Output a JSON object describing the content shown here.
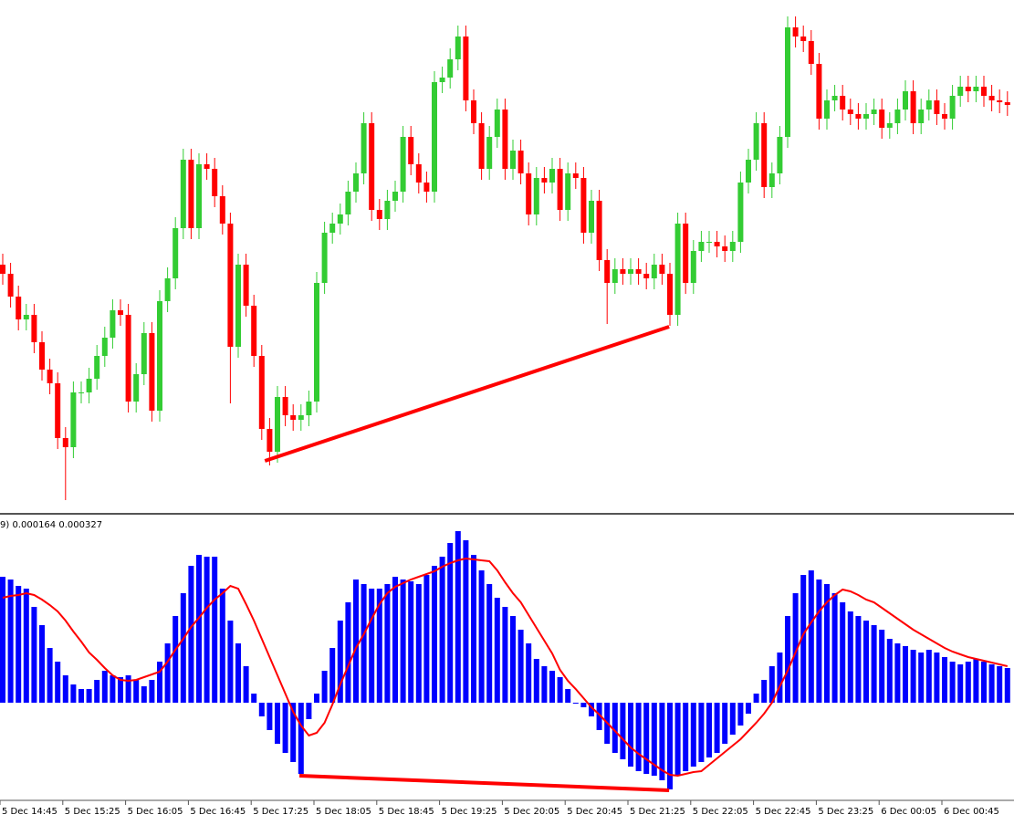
{
  "chart_data": [
    {
      "type": "candlestick",
      "ylim": [
        0,
        560
      ],
      "up_color": "#33cc33",
      "down_color": "#ff0000",
      "open": [
        270,
        260,
        235,
        210,
        215,
        185,
        155,
        140,
        80,
        70,
        130,
        130,
        145,
        170,
        190,
        220,
        215,
        120,
        150,
        195,
        110,
        230,
        255,
        310,
        385,
        310,
        380,
        375,
        345,
        315,
        180,
        270,
        225,
        170,
        90,
        65,
        125,
        105,
        100,
        105,
        120,
        250,
        305,
        315,
        325,
        350,
        370,
        425,
        330,
        320,
        340,
        350,
        410,
        380,
        360,
        350,
        470,
        475,
        495,
        520,
        450,
        425,
        375,
        410,
        440,
        375,
        395,
        370,
        325,
        365,
        360,
        375,
        330,
        370,
        365,
        305,
        340,
        275,
        250,
        265,
        260,
        265,
        260,
        255,
        270,
        260,
        215,
        315,
        250,
        285,
        295,
        295,
        290,
        285,
        295,
        360,
        385,
        425,
        355,
        370,
        410,
        530,
        520,
        515,
        490,
        430,
        450,
        455,
        440,
        435,
        430,
        435,
        440,
        420,
        425,
        440,
        460,
        425,
        440,
        450,
        435,
        430,
        455,
        465,
        460,
        465,
        455,
        450,
        448
      ],
      "high": [
        282,
        272,
        247,
        227,
        227,
        197,
        167,
        152,
        92,
        142,
        142,
        157,
        182,
        202,
        232,
        232,
        227,
        162,
        207,
        207,
        242,
        267,
        322,
        397,
        397,
        392,
        392,
        387,
        357,
        327,
        282,
        282,
        237,
        182,
        102,
        137,
        137,
        117,
        117,
        132,
        262,
        317,
        327,
        337,
        362,
        382,
        437,
        437,
        342,
        352,
        362,
        422,
        422,
        392,
        372,
        482,
        487,
        507,
        532,
        532,
        462,
        437,
        422,
        452,
        452,
        407,
        407,
        382,
        377,
        377,
        387,
        387,
        382,
        382,
        377,
        352,
        352,
        287,
        277,
        277,
        277,
        277,
        272,
        282,
        282,
        272,
        327,
        327,
        297,
        307,
        307,
        307,
        302,
        307,
        372,
        397,
        437,
        437,
        382,
        422,
        542,
        542,
        532,
        527,
        502,
        462,
        467,
        467,
        452,
        447,
        447,
        452,
        452,
        437,
        452,
        472,
        472,
        452,
        462,
        462,
        447,
        467,
        477,
        477,
        477,
        477,
        467,
        462,
        460
      ],
      "low": [
        248,
        223,
        198,
        198,
        173,
        143,
        128,
        68,
        12,
        58,
        118,
        118,
        133,
        158,
        178,
        203,
        108,
        108,
        138,
        98,
        98,
        218,
        243,
        298,
        298,
        298,
        363,
        333,
        303,
        118,
        168,
        213,
        158,
        78,
        50,
        53,
        93,
        88,
        88,
        93,
        108,
        238,
        293,
        303,
        313,
        338,
        358,
        318,
        308,
        308,
        328,
        338,
        368,
        348,
        338,
        338,
        458,
        463,
        483,
        438,
        413,
        363,
        363,
        398,
        363,
        363,
        358,
        313,
        313,
        348,
        348,
        318,
        318,
        353,
        293,
        293,
        263,
        205,
        238,
        248,
        248,
        248,
        243,
        243,
        248,
        203,
        203,
        238,
        238,
        273,
        283,
        278,
        273,
        273,
        283,
        348,
        373,
        343,
        343,
        358,
        398,
        508,
        503,
        478,
        418,
        418,
        438,
        428,
        423,
        418,
        418,
        423,
        408,
        408,
        413,
        428,
        413,
        413,
        428,
        423,
        418,
        418,
        443,
        448,
        448,
        443,
        438,
        436,
        433
      ],
      "close": [
        260,
        235,
        210,
        215,
        185,
        155,
        140,
        80,
        70,
        130,
        130,
        145,
        170,
        190,
        220,
        215,
        120,
        150,
        195,
        110,
        230,
        255,
        310,
        385,
        310,
        380,
        375,
        345,
        315,
        180,
        270,
        225,
        170,
        90,
        65,
        125,
        105,
        100,
        105,
        120,
        250,
        305,
        315,
        325,
        350,
        370,
        425,
        330,
        320,
        340,
        350,
        410,
        380,
        360,
        350,
        470,
        475,
        495,
        520,
        450,
        425,
        375,
        410,
        440,
        375,
        395,
        370,
        325,
        365,
        360,
        375,
        330,
        370,
        365,
        305,
        340,
        275,
        250,
        265,
        260,
        265,
        260,
        255,
        270,
        260,
        215,
        315,
        250,
        285,
        295,
        295,
        290,
        285,
        295,
        360,
        385,
        425,
        355,
        370,
        410,
        530,
        520,
        515,
        490,
        430,
        450,
        455,
        440,
        435,
        430,
        435,
        440,
        420,
        425,
        440,
        460,
        425,
        440,
        450,
        435,
        430,
        455,
        465,
        460,
        465,
        455,
        450,
        448,
        445
      ],
      "trendline": {
        "color": "#ff0000",
        "start": [
          33.4,
          55
        ],
        "end": [
          84.9,
          202
        ]
      }
    },
    {
      "type": "macd",
      "label": "9) 0.000164 0.000327",
      "ylim": [
        -105,
        205
      ],
      "histogram": {
        "color": "#0000ff",
        "values": [
          138,
          135,
          128,
          125,
          105,
          85,
          60,
          45,
          30,
          20,
          15,
          15,
          25,
          35,
          30,
          28,
          30,
          25,
          18,
          25,
          45,
          65,
          95,
          120,
          150,
          162,
          160,
          160,
          125,
          90,
          65,
          40,
          10,
          -15,
          -30,
          -45,
          -55,
          -65,
          -78,
          -18,
          10,
          35,
          60,
          90,
          110,
          135,
          130,
          125,
          125,
          130,
          138,
          135,
          133,
          130,
          140,
          150,
          160,
          175,
          188,
          178,
          162,
          145,
          130,
          115,
          105,
          95,
          80,
          65,
          48,
          40,
          35,
          28,
          15,
          0,
          -5,
          -15,
          -30,
          -45,
          -55,
          -62,
          -70,
          -75,
          -78,
          -80,
          -85,
          -95,
          -80,
          -75,
          -70,
          -65,
          -60,
          -55,
          -45,
          -35,
          -25,
          -12,
          10,
          25,
          40,
          55,
          95,
          120,
          140,
          145,
          135,
          130,
          120,
          110,
          100,
          95,
          90,
          85,
          80,
          70,
          65,
          62,
          58,
          55,
          58,
          55,
          50,
          45,
          42,
          45,
          48,
          45,
          42,
          40,
          38
        ]
      },
      "signal": {
        "color": "#ff0000",
        "values": [
          115,
          117,
          118,
          120,
          118,
          113,
          107,
          100,
          90,
          78,
          67,
          55,
          47,
          38,
          30,
          25,
          24,
          25,
          28,
          31,
          34,
          45,
          58,
          70,
          83,
          93,
          104,
          113,
          120,
          128,
          125,
          108,
          90,
          70,
          50,
          30,
          10,
          -10,
          -25,
          -36,
          -33,
          -22,
          -2,
          20,
          40,
          60,
          75,
          92,
          108,
          120,
          127,
          131,
          135,
          138,
          141,
          144,
          149,
          153,
          156,
          158,
          157,
          156,
          155,
          145,
          132,
          120,
          110,
          96,
          82,
          68,
          54,
          36,
          24,
          15,
          5,
          -5,
          -13,
          -22,
          -31,
          -40,
          -49,
          -56,
          -62,
          -68,
          -74,
          -79,
          -80,
          -78,
          -76,
          -75,
          -68,
          -61,
          -54,
          -47,
          -40,
          -31,
          -22,
          -12,
          0,
          18,
          35,
          55,
          75,
          88,
          100,
          110,
          118,
          124,
          122,
          118,
          113,
          110,
          104,
          98,
          92,
          86,
          80,
          75,
          70,
          65,
          60,
          56,
          53,
          50,
          48,
          46,
          44,
          42,
          40
        ]
      },
      "trendline": {
        "color": "#ff0000",
        "start": [
          37.8,
          -80
        ],
        "end": [
          84.9,
          -96
        ]
      },
      "xticks": [
        {
          "value": 0,
          "label": "5 Dec 14:45"
        },
        {
          "value": 8,
          "label": "5 Dec 15:25"
        },
        {
          "value": 16,
          "label": "5 Dec 16:05"
        },
        {
          "value": 24,
          "label": "5 Dec 16:45"
        },
        {
          "value": 32,
          "label": "5 Dec 17:25"
        },
        {
          "value": 40,
          "label": "5 Dec 18:05"
        },
        {
          "value": 48,
          "label": "5 Dec 18:45"
        },
        {
          "value": 56,
          "label": "5 Dec 19:25"
        },
        {
          "value": 64,
          "label": "5 Dec 20:05"
        },
        {
          "value": 72,
          "label": "5 Dec 20:45"
        },
        {
          "value": 80,
          "label": "5 Dec 21:25"
        },
        {
          "value": 88,
          "label": "5 Dec 22:05"
        },
        {
          "value": 96,
          "label": "5 Dec 22:45"
        },
        {
          "value": 104,
          "label": "5 Dec 23:25"
        },
        {
          "value": 112,
          "label": "6 Dec 00:05"
        },
        {
          "value": 120,
          "label": "6 Dec 00:45"
        }
      ]
    }
  ]
}
